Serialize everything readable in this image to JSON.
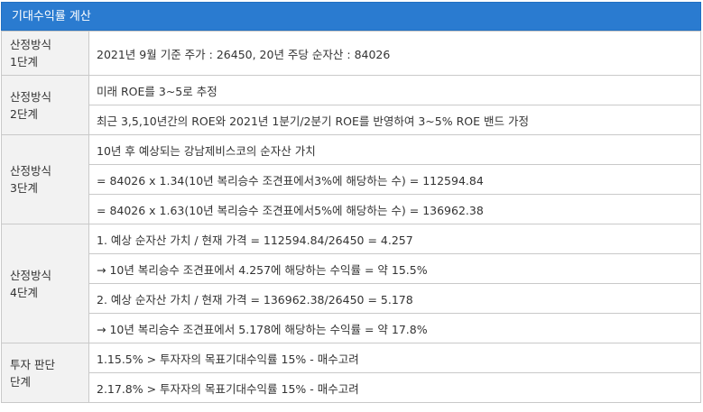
{
  "title": "기대수익률 계산",
  "rows": [
    {
      "label": "산정방식\n1단계",
      "values": [
        "2021년 9월 기준 주가 : 26450, 20년 주당 순자산 : 84026"
      ]
    },
    {
      "label": "산정방식\n2단계",
      "values": [
        "미래 ROE를 3~5로 추정",
        "최근 3,5,10년간의 ROE와 2021년 1분기/2분기 ROE를 반영하여 3~5% ROE 밴드 가정"
      ]
    },
    {
      "label": "산정방식\n3단계",
      "values": [
        "10년 후 예상되는 강남제비스코의 순자산 가치",
        "= 84026 x 1.34(10년 복리승수 조견표에서3%에 해당하는 수) = 112594.84",
        "= 84026 x 1.63(10년 복리승수 조견표에서5%에 해당하는 수) = 136962.38"
      ]
    },
    {
      "label": "산정방식\n4단계",
      "values": [
        "1. 예상 순자산 가치 / 현재 가격 = 112594.84/26450 = 4.257",
        "→ 10년 복리승수 조견표에서 4.257에 해당하는 수익률 = 약 15.5%",
        "2. 예상 순자산 가치 / 현재 가격 = 136962.38/26450 = 5.178",
        "→ 10년 복리승수 조견표에서 5.178에 해당하는 수익률 = 약 17.8%"
      ]
    },
    {
      "label": "투자 판단\n단계",
      "values": [
        "1.15.5% > 투자자의 목표기대수익률 15% - 매수고려",
        "2.17.8% > 투자자의 목표기대수익률 15% - 매수고려"
      ]
    }
  ]
}
